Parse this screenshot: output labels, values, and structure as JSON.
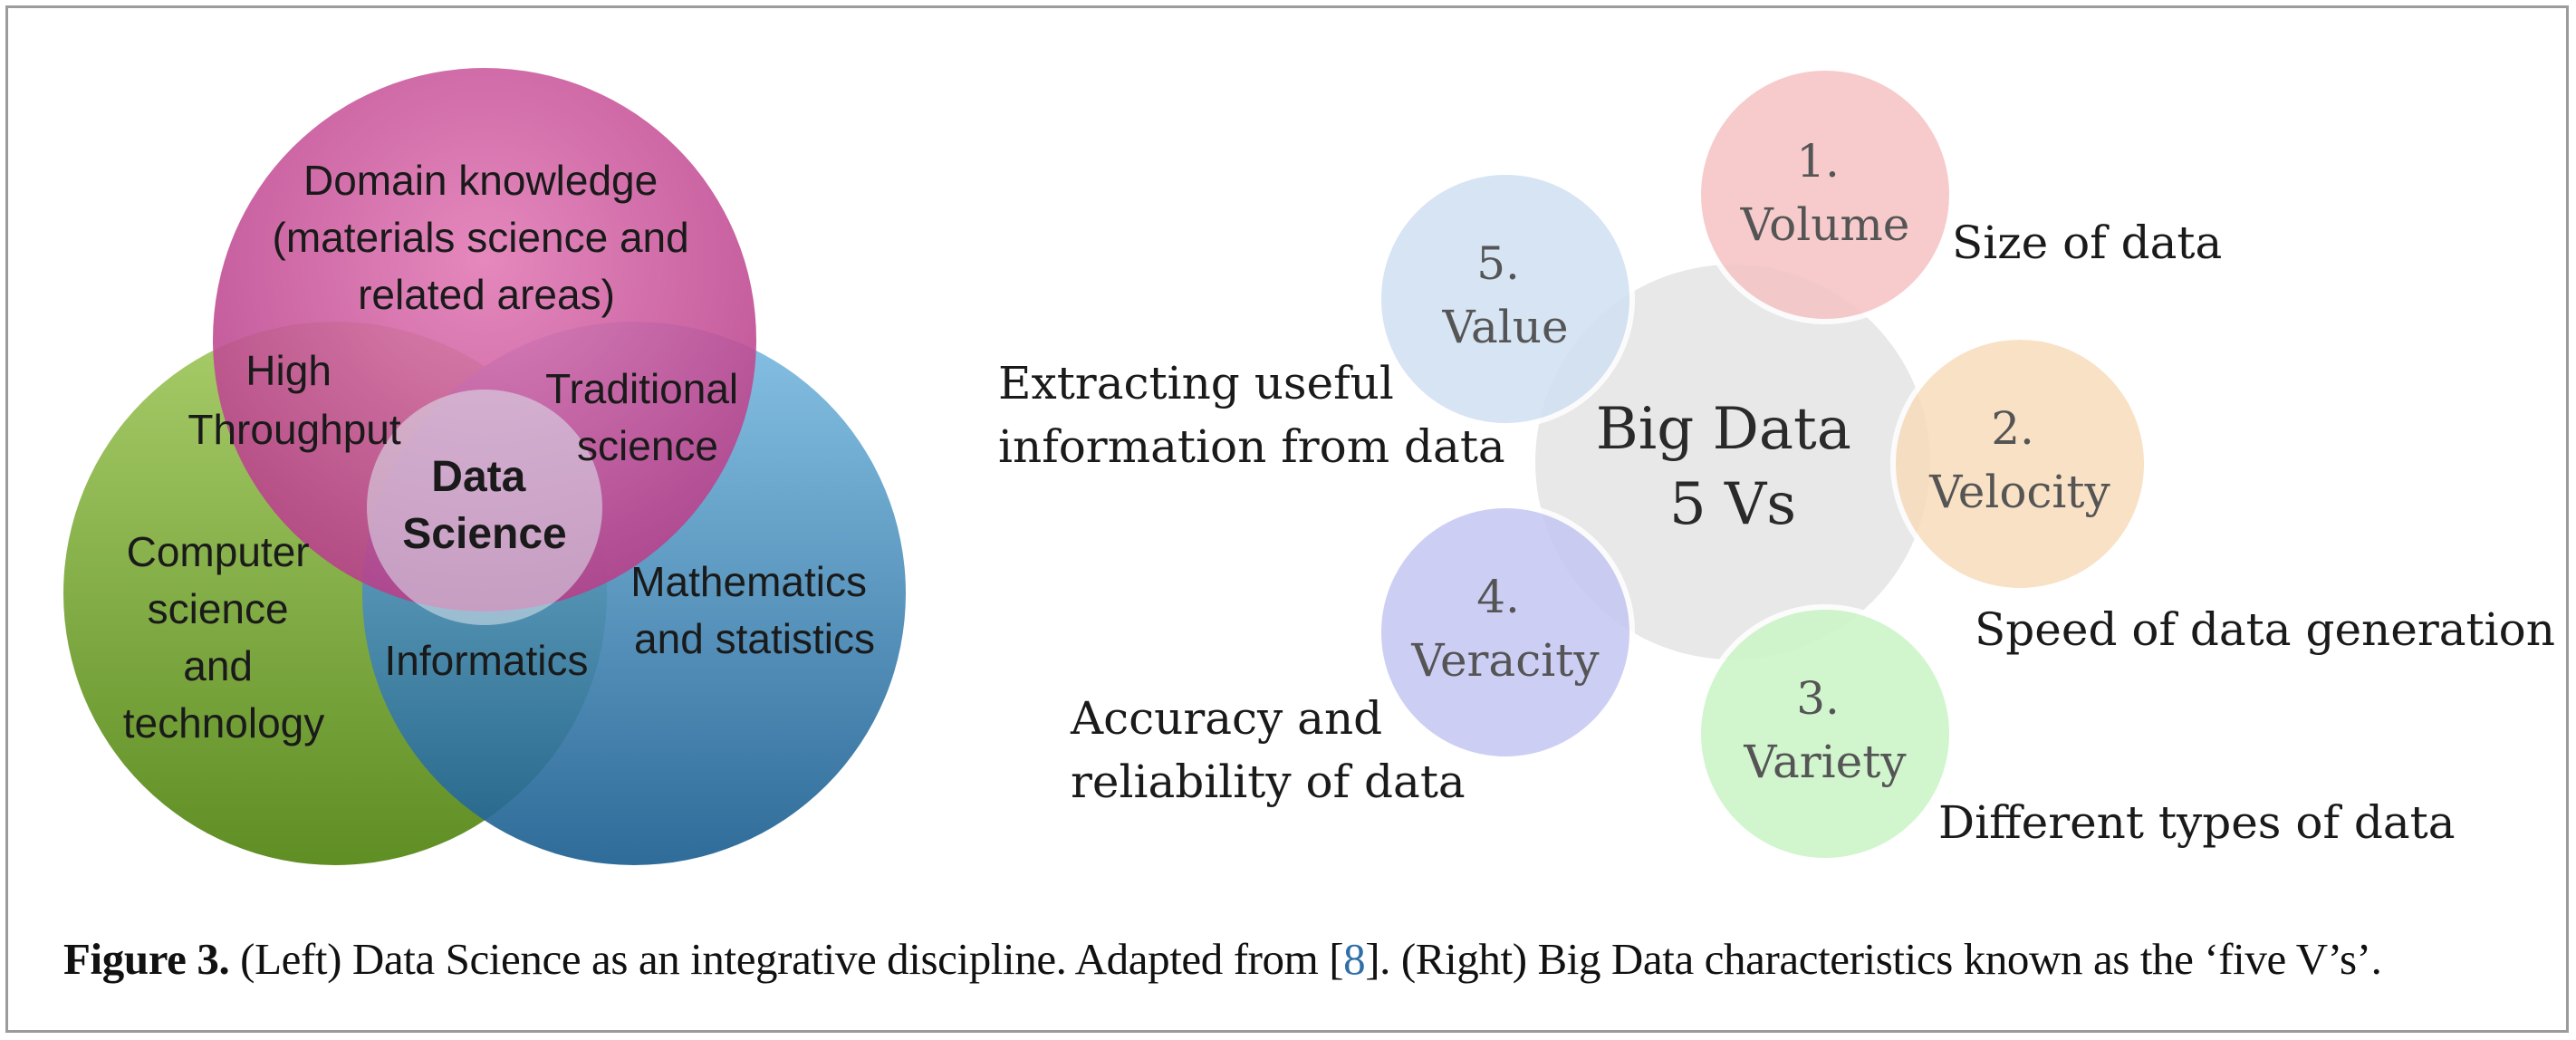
{
  "venn": {
    "domain_lines": [
      "Domain knowledge",
      "(materials science and",
      "related areas)"
    ],
    "high_throughput_lines": [
      "High",
      "Throughput"
    ],
    "traditional_lines": [
      "Traditional",
      "science"
    ],
    "data_science_lines": [
      "Data",
      "Science"
    ],
    "computer_lines": [
      "Computer",
      "science",
      "and",
      "technology"
    ],
    "math_lines": [
      "Mathematics",
      "and statistics"
    ],
    "informatics": "Informatics"
  },
  "bigdata": {
    "center_lines": [
      "Big Data",
      "5 Vs"
    ],
    "items": [
      {
        "number": "1.",
        "name": "Volume",
        "desc_lines": [
          "Size of data"
        ],
        "color": "#f6c3c4"
      },
      {
        "number": "2.",
        "name": "Velocity",
        "desc_lines": [
          "Speed of data generation"
        ],
        "color": "#f8dcbc"
      },
      {
        "number": "3.",
        "name": "Variety",
        "desc_lines": [
          "Different types of data"
        ],
        "color": "#cdf6c9"
      },
      {
        "number": "4.",
        "name": "Veracity",
        "desc_lines": [
          "Accuracy and",
          "reliability of data"
        ],
        "color": "#c5c6f3"
      },
      {
        "number": "5.",
        "name": "Value",
        "desc_lines": [
          "Extracting useful",
          "information from data"
        ],
        "color": "#d1e0f3"
      }
    ],
    "center_color": "#e8e8e8"
  },
  "caption": {
    "label": "Figure 3.",
    "text_before": " (Left) Data Science as an integrative discipline. Adapted from [",
    "ref": "8",
    "text_after": "]. (Right) Big Data characteristics known as the ‘five V’s’."
  },
  "colors": {
    "domain": "#c34a93",
    "computer": "#7aa33a",
    "math": "#3b86b5"
  }
}
